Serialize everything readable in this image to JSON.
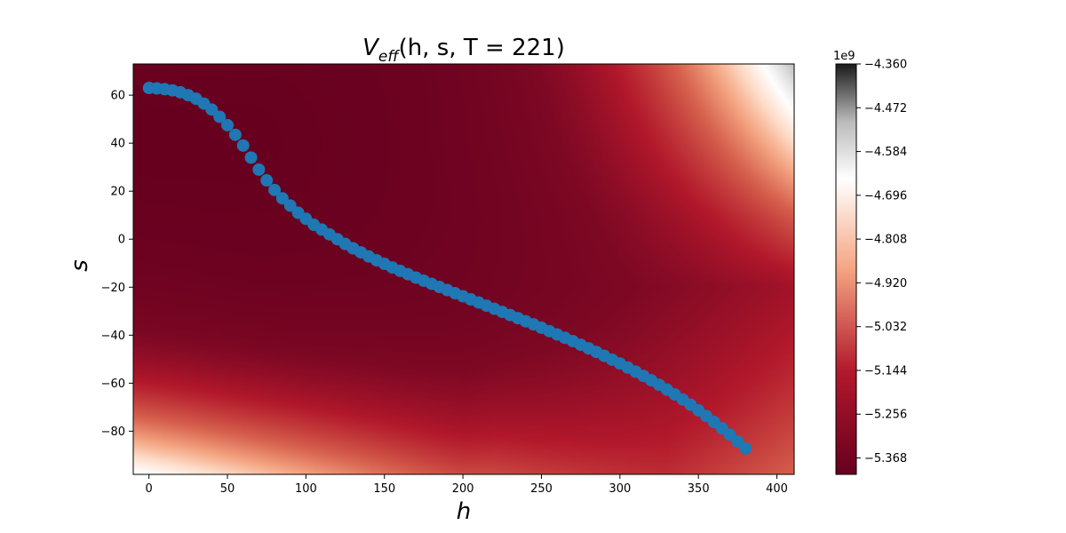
{
  "chart_data": {
    "type": "heatmap",
    "title": "V_eff(h, s, T = 221)",
    "title_parts": {
      "v": "V",
      "sub": "eff",
      "args": "(h, s, T = 221)"
    },
    "xlabel": "h",
    "ylabel": "s",
    "xlim": [
      -10,
      411
    ],
    "ylim": [
      -98,
      73
    ],
    "x_ticks": [
      0,
      50,
      100,
      150,
      200,
      250,
      300,
      350,
      400
    ],
    "x_tick_labels": [
      "0",
      "50",
      "100",
      "150",
      "200",
      "250",
      "300",
      "350",
      "400"
    ],
    "y_ticks": [
      60,
      40,
      20,
      0,
      -20,
      -40,
      -60,
      -80
    ],
    "y_tick_labels": [
      "60",
      "40",
      "20",
      "0",
      "−20",
      "−40",
      "−60",
      "−80"
    ],
    "colormap": "RdGy",
    "colorbar": {
      "range": [
        -5.41,
        -4.36
      ],
      "exponent_label": "1e9",
      "ticks": [
        -4.36,
        -4.472,
        -4.584,
        -4.696,
        -4.808,
        -4.92,
        -5.032,
        -5.144,
        -5.256,
        -5.368
      ],
      "tick_labels": [
        "−4.360",
        "−4.472",
        "−4.584",
        "−4.696",
        "−4.808",
        "−4.920",
        "−5.032",
        "−5.144",
        "−5.256",
        "−5.368"
      ]
    },
    "grid": false,
    "series": [
      {
        "type": "scatter",
        "color": "#1f77b4",
        "points": [
          [
            0,
            63
          ],
          [
            5,
            62.8
          ],
          [
            10,
            62.5
          ],
          [
            15,
            62
          ],
          [
            20,
            61.2
          ],
          [
            25,
            60
          ],
          [
            30,
            58.5
          ],
          [
            35,
            56.5
          ],
          [
            40,
            54
          ],
          [
            45,
            51
          ],
          [
            50,
            47.5
          ],
          [
            55,
            43.5
          ],
          [
            60,
            39
          ],
          [
            65,
            34
          ],
          [
            70,
            29
          ],
          [
            75,
            24.5
          ],
          [
            80,
            20.5
          ],
          [
            85,
            17
          ],
          [
            90,
            14
          ],
          [
            95,
            11
          ],
          [
            100,
            8.5
          ],
          [
            105,
            6
          ],
          [
            110,
            4
          ],
          [
            115,
            2
          ],
          [
            120,
            0
          ],
          [
            125,
            -2
          ],
          [
            130,
            -3.8
          ],
          [
            135,
            -5.5
          ],
          [
            140,
            -7.2
          ],
          [
            145,
            -8.8
          ],
          [
            150,
            -10.3
          ],
          [
            155,
            -11.8
          ],
          [
            160,
            -13.2
          ],
          [
            165,
            -14.6
          ],
          [
            170,
            -16
          ],
          [
            175,
            -17.3
          ],
          [
            180,
            -18.6
          ],
          [
            185,
            -19.9
          ],
          [
            190,
            -21.2
          ],
          [
            195,
            -22.5
          ],
          [
            200,
            -23.8
          ],
          [
            205,
            -25.1
          ],
          [
            210,
            -26.4
          ],
          [
            215,
            -27.7
          ],
          [
            220,
            -29
          ],
          [
            225,
            -30.3
          ],
          [
            230,
            -31.6
          ],
          [
            235,
            -32.9
          ],
          [
            240,
            -34.2
          ],
          [
            245,
            -35.5
          ],
          [
            250,
            -36.9
          ],
          [
            255,
            -38.3
          ],
          [
            260,
            -39.7
          ],
          [
            265,
            -41.1
          ],
          [
            270,
            -42.5
          ],
          [
            275,
            -44
          ],
          [
            280,
            -45.5
          ],
          [
            285,
            -47
          ],
          [
            290,
            -48.6
          ],
          [
            295,
            -50.2
          ],
          [
            300,
            -51.8
          ],
          [
            305,
            -53.5
          ],
          [
            310,
            -55.2
          ],
          [
            315,
            -57
          ],
          [
            320,
            -58.8
          ],
          [
            325,
            -60.7
          ],
          [
            330,
            -62.7
          ],
          [
            335,
            -64.7
          ],
          [
            340,
            -66.8
          ],
          [
            345,
            -69
          ],
          [
            350,
            -71.3
          ],
          [
            355,
            -73.7
          ],
          [
            360,
            -76.2
          ],
          [
            365,
            -78.8
          ],
          [
            370,
            -81.5
          ],
          [
            375,
            -84.3
          ],
          [
            380,
            -87.2
          ]
        ]
      }
    ]
  }
}
